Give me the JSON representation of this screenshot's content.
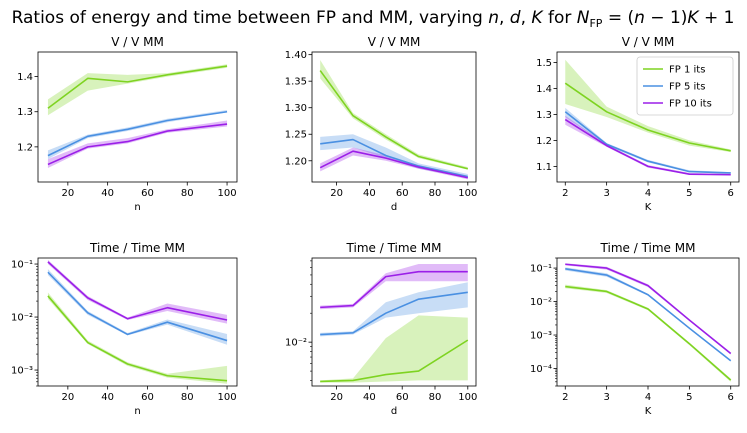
{
  "suptitle": "Ratios of energy and time between FP and MM, varying n, d, K for N_FP = (n−1)K + 1",
  "legend": [
    {
      "name": "FP 1 its",
      "color": "#7ed321"
    },
    {
      "name": "FP 5 its",
      "color": "#4a90e2"
    },
    {
      "name": "FP 10 its",
      "color": "#9b1fe8"
    }
  ],
  "chart_data": [
    {
      "type": "line",
      "title": "V / V MM",
      "xlabel": "n",
      "ylabel": "",
      "x": [
        10,
        30,
        50,
        70,
        100
      ],
      "xticks": [
        20,
        40,
        60,
        80,
        100
      ],
      "xlim": [
        5,
        105
      ],
      "scale": "linear",
      "ylim": [
        1.1,
        1.47
      ],
      "yticks": [
        1.2,
        1.3,
        1.4
      ],
      "yticklabels": [
        "1.2",
        "1.3",
        "1.4"
      ],
      "grid": false,
      "legend": "none",
      "series": [
        {
          "name": "FP 1 its",
          "values": [
            1.31,
            1.395,
            1.385,
            1.405,
            1.43
          ],
          "lower": [
            1.29,
            1.36,
            1.38,
            1.4,
            1.425
          ],
          "upper": [
            1.335,
            1.41,
            1.405,
            1.41,
            1.435
          ]
        },
        {
          "name": "FP 5 its",
          "values": [
            1.175,
            1.23,
            1.25,
            1.275,
            1.3
          ],
          "lower": [
            1.165,
            1.225,
            1.245,
            1.27,
            1.298
          ],
          "upper": [
            1.19,
            1.235,
            1.255,
            1.28,
            1.305
          ]
        },
        {
          "name": "FP 10 its",
          "values": [
            1.15,
            1.2,
            1.215,
            1.245,
            1.265
          ],
          "lower": [
            1.14,
            1.195,
            1.21,
            1.24,
            1.258
          ],
          "upper": [
            1.165,
            1.21,
            1.225,
            1.25,
            1.275
          ]
        }
      ]
    },
    {
      "type": "line",
      "title": "V / V MM",
      "xlabel": "d",
      "ylabel": "",
      "x": [
        10,
        30,
        50,
        70,
        100
      ],
      "xticks": [
        20,
        40,
        60,
        80,
        100
      ],
      "xlim": [
        5,
        105
      ],
      "scale": "linear",
      "ylim": [
        1.16,
        1.405
      ],
      "yticks": [
        1.2,
        1.25,
        1.3,
        1.35,
        1.4
      ],
      "yticklabels": [
        "1.20",
        "1.25",
        "1.30",
        "1.35",
        "1.40"
      ],
      "grid": false,
      "legend": "none",
      "series": [
        {
          "name": "FP 1 its",
          "values": [
            1.37,
            1.285,
            1.245,
            1.208,
            1.185
          ],
          "lower": [
            1.355,
            1.28,
            1.24,
            1.205,
            1.183
          ],
          "upper": [
            1.39,
            1.29,
            1.25,
            1.212,
            1.188
          ]
        },
        {
          "name": "FP 5 its",
          "values": [
            1.232,
            1.24,
            1.21,
            1.19,
            1.17
          ],
          "lower": [
            1.22,
            1.225,
            1.205,
            1.185,
            1.168
          ],
          "upper": [
            1.245,
            1.25,
            1.225,
            1.195,
            1.175
          ]
        },
        {
          "name": "FP 10 its",
          "values": [
            1.187,
            1.218,
            1.205,
            1.188,
            1.168
          ],
          "lower": [
            1.18,
            1.21,
            1.2,
            1.185,
            1.165
          ],
          "upper": [
            1.195,
            1.225,
            1.21,
            1.192,
            1.172
          ]
        }
      ]
    },
    {
      "type": "line",
      "title": "V / V MM",
      "xlabel": "K",
      "ylabel": "",
      "x": [
        2,
        3,
        4,
        5,
        6
      ],
      "xticks": [
        2,
        3,
        4,
        5,
        6
      ],
      "xlim": [
        1.8,
        6.2
      ],
      "scale": "linear",
      "ylim": [
        1.04,
        1.54
      ],
      "yticks": [
        1.1,
        1.2,
        1.3,
        1.4,
        1.5
      ],
      "yticklabels": [
        "1.1",
        "1.2",
        "1.3",
        "1.4",
        "1.5"
      ],
      "grid": false,
      "legend": "top-right",
      "series": [
        {
          "name": "FP 1 its",
          "values": [
            1.42,
            1.31,
            1.24,
            1.19,
            1.16
          ],
          "lower": [
            1.34,
            1.29,
            1.23,
            1.18,
            1.155
          ],
          "upper": [
            1.51,
            1.33,
            1.255,
            1.2,
            1.165
          ]
        },
        {
          "name": "FP 5 its",
          "values": [
            1.31,
            1.185,
            1.12,
            1.08,
            1.075
          ],
          "lower": [
            1.29,
            1.18,
            1.115,
            1.078,
            1.072
          ],
          "upper": [
            1.325,
            1.19,
            1.125,
            1.085,
            1.078
          ]
        },
        {
          "name": "FP 10 its",
          "values": [
            1.28,
            1.18,
            1.1,
            1.07,
            1.068
          ],
          "lower": [
            1.26,
            1.175,
            1.095,
            1.068,
            1.066
          ],
          "upper": [
            1.295,
            1.185,
            1.105,
            1.075,
            1.07
          ]
        }
      ]
    },
    {
      "type": "line",
      "title": "Time / Time MM",
      "xlabel": "n",
      "ylabel": "",
      "x": [
        10,
        30,
        50,
        70,
        100
      ],
      "xticks": [
        20,
        40,
        60,
        80,
        100
      ],
      "xlim": [
        5,
        105
      ],
      "scale": "log",
      "ylim": [
        0.0005,
        0.13
      ],
      "yticks": [
        0.001,
        0.01,
        0.1
      ],
      "yticklabels": [
        "10⁻³",
        "10⁻²",
        "10⁻¹"
      ],
      "grid": false,
      "legend": "none",
      "series": [
        {
          "name": "FP 1 its",
          "values": [
            0.025,
            0.0033,
            0.0013,
            0.00078,
            0.00063
          ],
          "lower": [
            0.022,
            0.0031,
            0.0012,
            0.00072,
            0.00055
          ],
          "upper": [
            0.029,
            0.0036,
            0.0014,
            0.00085,
            0.0012
          ]
        },
        {
          "name": "FP 5 its",
          "values": [
            0.07,
            0.012,
            0.0047,
            0.008,
            0.0036
          ],
          "lower": [
            0.062,
            0.011,
            0.0045,
            0.0072,
            0.003
          ],
          "upper": [
            0.08,
            0.013,
            0.005,
            0.009,
            0.0048
          ]
        },
        {
          "name": "FP 10 its",
          "values": [
            0.11,
            0.023,
            0.0093,
            0.015,
            0.0088
          ],
          "lower": [
            0.1,
            0.021,
            0.0088,
            0.013,
            0.0075
          ],
          "upper": [
            0.12,
            0.025,
            0.0098,
            0.018,
            0.011
          ]
        }
      ]
    },
    {
      "type": "line",
      "title": "Time / Time MM",
      "xlabel": "d",
      "ylabel": "",
      "x": [
        10,
        30,
        50,
        70,
        100
      ],
      "xticks": [
        20,
        40,
        60,
        80,
        100
      ],
      "xlim": [
        5,
        105
      ],
      "scale": "log",
      "ylim": [
        0.0035,
        0.075
      ],
      "yticks": [
        0.01
      ],
      "yticklabels": [
        "10⁻²"
      ],
      "grid": false,
      "legend": "none",
      "series": [
        {
          "name": "FP 1 its",
          "values": [
            0.0039,
            0.004,
            0.0046,
            0.005,
            0.0105
          ],
          "lower": [
            0.0038,
            0.0038,
            0.0039,
            0.004,
            0.004
          ],
          "upper": [
            0.004,
            0.0042,
            0.011,
            0.019,
            0.018
          ]
        },
        {
          "name": "FP 5 its",
          "values": [
            0.012,
            0.0125,
            0.02,
            0.028,
            0.033
          ],
          "lower": [
            0.0115,
            0.012,
            0.018,
            0.02,
            0.023
          ],
          "upper": [
            0.0125,
            0.013,
            0.026,
            0.033,
            0.042
          ]
        },
        {
          "name": "FP 10 its",
          "values": [
            0.023,
            0.024,
            0.048,
            0.054,
            0.054
          ],
          "lower": [
            0.022,
            0.023,
            0.043,
            0.043,
            0.043
          ],
          "upper": [
            0.024,
            0.025,
            0.052,
            0.065,
            0.065
          ]
        }
      ]
    },
    {
      "type": "line",
      "title": "Time / Time MM",
      "xlabel": "K",
      "ylabel": "",
      "x": [
        2,
        3,
        4,
        5,
        6
      ],
      "xticks": [
        2,
        3,
        4,
        5,
        6
      ],
      "xlim": [
        1.8,
        6.2
      ],
      "scale": "log",
      "ylim": [
        3e-05,
        0.2
      ],
      "yticks": [
        0.0001,
        0.001,
        0.01,
        0.1
      ],
      "yticklabels": [
        "10⁻⁴",
        "10⁻³",
        "10⁻²",
        "10⁻¹"
      ],
      "grid": false,
      "legend": "none",
      "series": [
        {
          "name": "FP 1 its",
          "values": [
            0.028,
            0.02,
            0.006,
            0.00055,
            4.5e-05
          ],
          "lower": [
            0.025,
            0.018,
            0.0055,
            0.0005,
            4e-05
          ],
          "upper": [
            0.032,
            0.022,
            0.0065,
            0.0006,
            5e-05
          ]
        },
        {
          "name": "FP 5 its",
          "values": [
            0.095,
            0.062,
            0.016,
            0.0016,
            0.00017
          ],
          "lower": [
            0.085,
            0.055,
            0.015,
            0.0015,
            0.00016
          ],
          "upper": [
            0.105,
            0.07,
            0.017,
            0.0017,
            0.00018
          ]
        },
        {
          "name": "FP 10 its",
          "values": [
            0.13,
            0.1,
            0.03,
            0.0028,
            0.00028
          ],
          "lower": [
            0.12,
            0.09,
            0.027,
            0.0026,
            0.00026
          ],
          "upper": [
            0.14,
            0.11,
            0.033,
            0.003,
            0.0003
          ]
        }
      ]
    }
  ]
}
